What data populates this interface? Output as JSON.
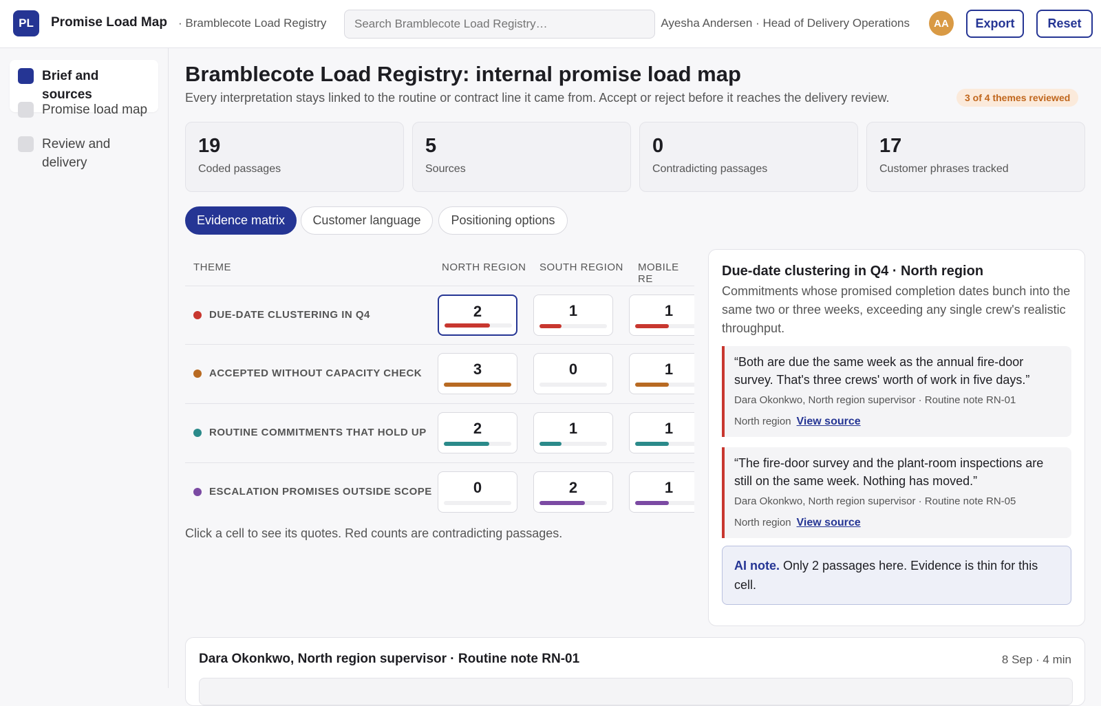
{
  "header": {
    "logo": "PL",
    "app_name": "Promise Load Map",
    "crumb": "· Bramblecote Load Registry",
    "search_placeholder": "Search Bramblecote Load Registry…",
    "user": "Ayesha Andersen · Head of Delivery Operations",
    "avatar": "AA",
    "export_label": "Export",
    "reset_label": "Reset"
  },
  "sidebar": {
    "items": [
      {
        "label": "Brief and sources",
        "active": true
      },
      {
        "label": "Promise load map",
        "active": false
      },
      {
        "label": "Review and delivery",
        "active": false
      }
    ]
  },
  "main": {
    "title": "Bramblecote Load Registry: internal promise load map",
    "subtitle": "Every interpretation stays linked to the routine or contract line it came from. Accept or reject before it reaches the delivery review.",
    "badge": "3 of 4 themes reviewed",
    "stats": [
      {
        "value": "19",
        "label": "Coded passages"
      },
      {
        "value": "5",
        "label": "Sources"
      },
      {
        "value": "0",
        "label": "Contradicting passages"
      },
      {
        "value": "17",
        "label": "Customer phrases tracked"
      }
    ],
    "tabs": [
      "Evidence matrix",
      "Customer language",
      "Positioning options"
    ],
    "matrix": {
      "columns": [
        "THEME",
        "NORTH REGION",
        "SOUTH REGION",
        "MOBILE RE"
      ],
      "rows": [
        {
          "theme": "DUE-DATE CLUSTERING IN Q4",
          "color": "#c8372f",
          "values": [
            "2",
            "1",
            "1"
          ],
          "fills": [
            0.67,
            0.33,
            0.5
          ]
        },
        {
          "theme": "ACCEPTED WITHOUT CAPACITY CHECK",
          "color": "#b86a22",
          "values": [
            "3",
            "0",
            "1"
          ],
          "fills": [
            1.0,
            0.0,
            0.5
          ]
        },
        {
          "theme": "ROUTINE COMMITMENTS THAT HOLD UP",
          "color": "#2b8a8a",
          "values": [
            "2",
            "1",
            "1"
          ],
          "fills": [
            0.67,
            0.33,
            0.5
          ]
        },
        {
          "theme": "ESCALATION PROMISES OUTSIDE SCOPE",
          "color": "#7b4aa3",
          "values": [
            "0",
            "2",
            "1"
          ],
          "fills": [
            0.0,
            0.67,
            0.5
          ]
        }
      ],
      "hint": "Click a cell to see its quotes. Red counts are contradicting passages."
    },
    "panel": {
      "title": "Due-date clustering in Q4 · North region",
      "description": "Commitments whose promised completion dates bunch into the same two or three weeks, exceeding any single crew's realistic throughput.",
      "quotes": [
        {
          "text": "“Both are due the same week as the annual fire-door survey. That's three crews' worth of work in five days.”",
          "source": "Dara Okonkwo, North region supervisor · Routine note RN-01",
          "region": "North region",
          "link": "View source"
        },
        {
          "text": "“The fire-door survey and the plant-room inspections are still on the same week. Nothing has moved.”",
          "source": "Dara Okonkwo, North region supervisor · Routine note RN-05",
          "region": "North region",
          "link": "View source"
        }
      ],
      "ai_note_label": "AI note.",
      "ai_note_text": " Only 2 passages here. Evidence is thin for this cell."
    },
    "bottom_card": {
      "title": "Dara Okonkwo, North region supervisor · Routine note RN-01",
      "meta": "8 Sep · 4 min"
    }
  }
}
